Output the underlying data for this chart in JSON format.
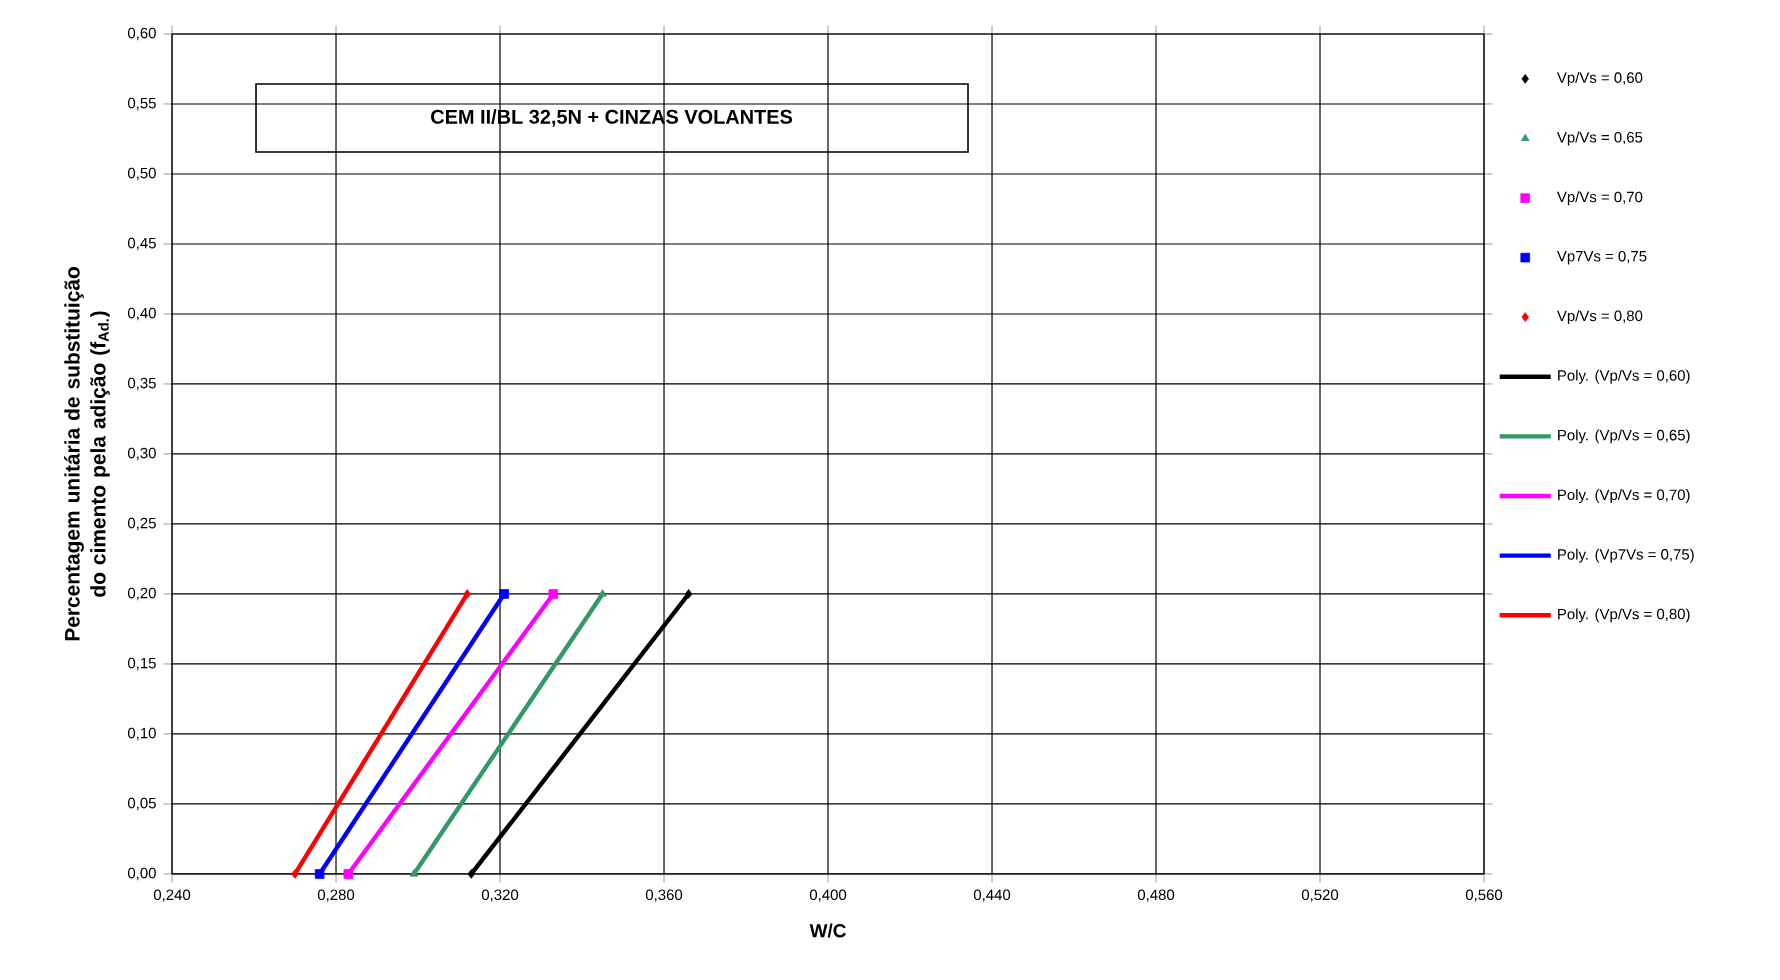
{
  "chart_data": {
    "type": "scatter",
    "title": "CEM II/BL 32,5N + CINZAS VOLANTES",
    "xlabel": "W/C",
    "ylabel": "Percentagem unitária de substituição do cimento pela adição (f$_{Ad.}$)",
    "xlim": [
      0.24,
      0.56
    ],
    "ylim": [
      0,
      0.6
    ],
    "xticks": [
      {
        "value": 0.24,
        "label": "0,240"
      },
      {
        "value": 0.28,
        "label": "0,280"
      },
      {
        "value": 0.32,
        "label": "0,320"
      },
      {
        "value": 0.36,
        "label": "0,360"
      },
      {
        "value": 0.4,
        "label": "0,400"
      },
      {
        "value": 0.44,
        "label": "0,440"
      },
      {
        "value": 0.48,
        "label": "0,480"
      },
      {
        "value": 0.52,
        "label": "0,520"
      },
      {
        "value": 0.56,
        "label": "0,560"
      }
    ],
    "yticks": [
      {
        "value": 0,
        "label": "0,00"
      },
      {
        "value": 0.05,
        "label": "0,05"
      },
      {
        "value": 0.1,
        "label": "0,10"
      },
      {
        "value": 0.15,
        "label": "0,15"
      },
      {
        "value": 0.2,
        "label": "0,20"
      },
      {
        "value": 0.25,
        "label": "0,25"
      },
      {
        "value": 0.3,
        "label": "0,30"
      },
      {
        "value": 0.35,
        "label": "0,35"
      },
      {
        "value": 0.4,
        "label": "0,40"
      },
      {
        "value": 0.45,
        "label": "0,45"
      },
      {
        "value": 0.5,
        "label": "0,50"
      },
      {
        "value": 0.55,
        "label": "0,55"
      },
      {
        "value": 0.6,
        "label": "0,60"
      }
    ],
    "grid": true,
    "legend": "right",
    "series": [
      {
        "name": "Vp/Vs = 0,60",
        "type": "scatter",
        "marker": "diamond",
        "color": "#000000",
        "x": [
          0.313,
          0.366
        ],
        "values": [
          0,
          0.2
        ]
      },
      {
        "name": "Vp/Vs = 0,65",
        "type": "scatter",
        "marker": "triangle",
        "color": "#339966",
        "x": [
          0.299,
          0.345
        ],
        "values": [
          0,
          0.2
        ]
      },
      {
        "name": "Vp/Vs = 0,70",
        "type": "scatter",
        "marker": "square",
        "color": "#ff00ff",
        "x": [
          0.283,
          0.333
        ],
        "values": [
          0,
          0.2
        ]
      },
      {
        "name": "Vp7Vs = 0,75",
        "type": "scatter",
        "marker": "square",
        "color": "#0000ff",
        "x": [
          0.276,
          0.321
        ],
        "values": [
          0,
          0.2
        ]
      },
      {
        "name": "Vp/Vs = 0,80",
        "type": "scatter",
        "marker": "diamond",
        "color": "#ff0000",
        "x": [
          0.27,
          0.312
        ],
        "values": [
          0,
          0.2
        ]
      },
      {
        "name": "Poly. (Vp/Vs = 0,60)",
        "type": "line",
        "line_style": "solid",
        "color": "#000000",
        "x": [
          0.313,
          0.366
        ],
        "values": [
          0,
          0.2
        ]
      },
      {
        "name": "Poly. (Vp/Vs = 0,65)",
        "type": "line",
        "line_style": "solid",
        "color": "#339966",
        "x": [
          0.299,
          0.345
        ],
        "values": [
          0,
          0.2
        ]
      },
      {
        "name": "Poly. (Vp/Vs = 0,70)",
        "type": "line",
        "line_style": "solid",
        "color": "#ff00ff",
        "x": [
          0.283,
          0.333
        ],
        "values": [
          0,
          0.2
        ]
      },
      {
        "name": "Poly. (Vp7Vs = 0,75)",
        "type": "line",
        "line_style": "solid",
        "color": "#0000ff",
        "x": [
          0.276,
          0.321
        ],
        "values": [
          0,
          0.2
        ]
      },
      {
        "name": "Poly. (Vp/Vs = 0,80)",
        "type": "line",
        "line_style": "solid",
        "color": "#ff0000",
        "x": [
          0.27,
          0.312
        ],
        "values": [
          0,
          0.2
        ]
      }
    ]
  }
}
